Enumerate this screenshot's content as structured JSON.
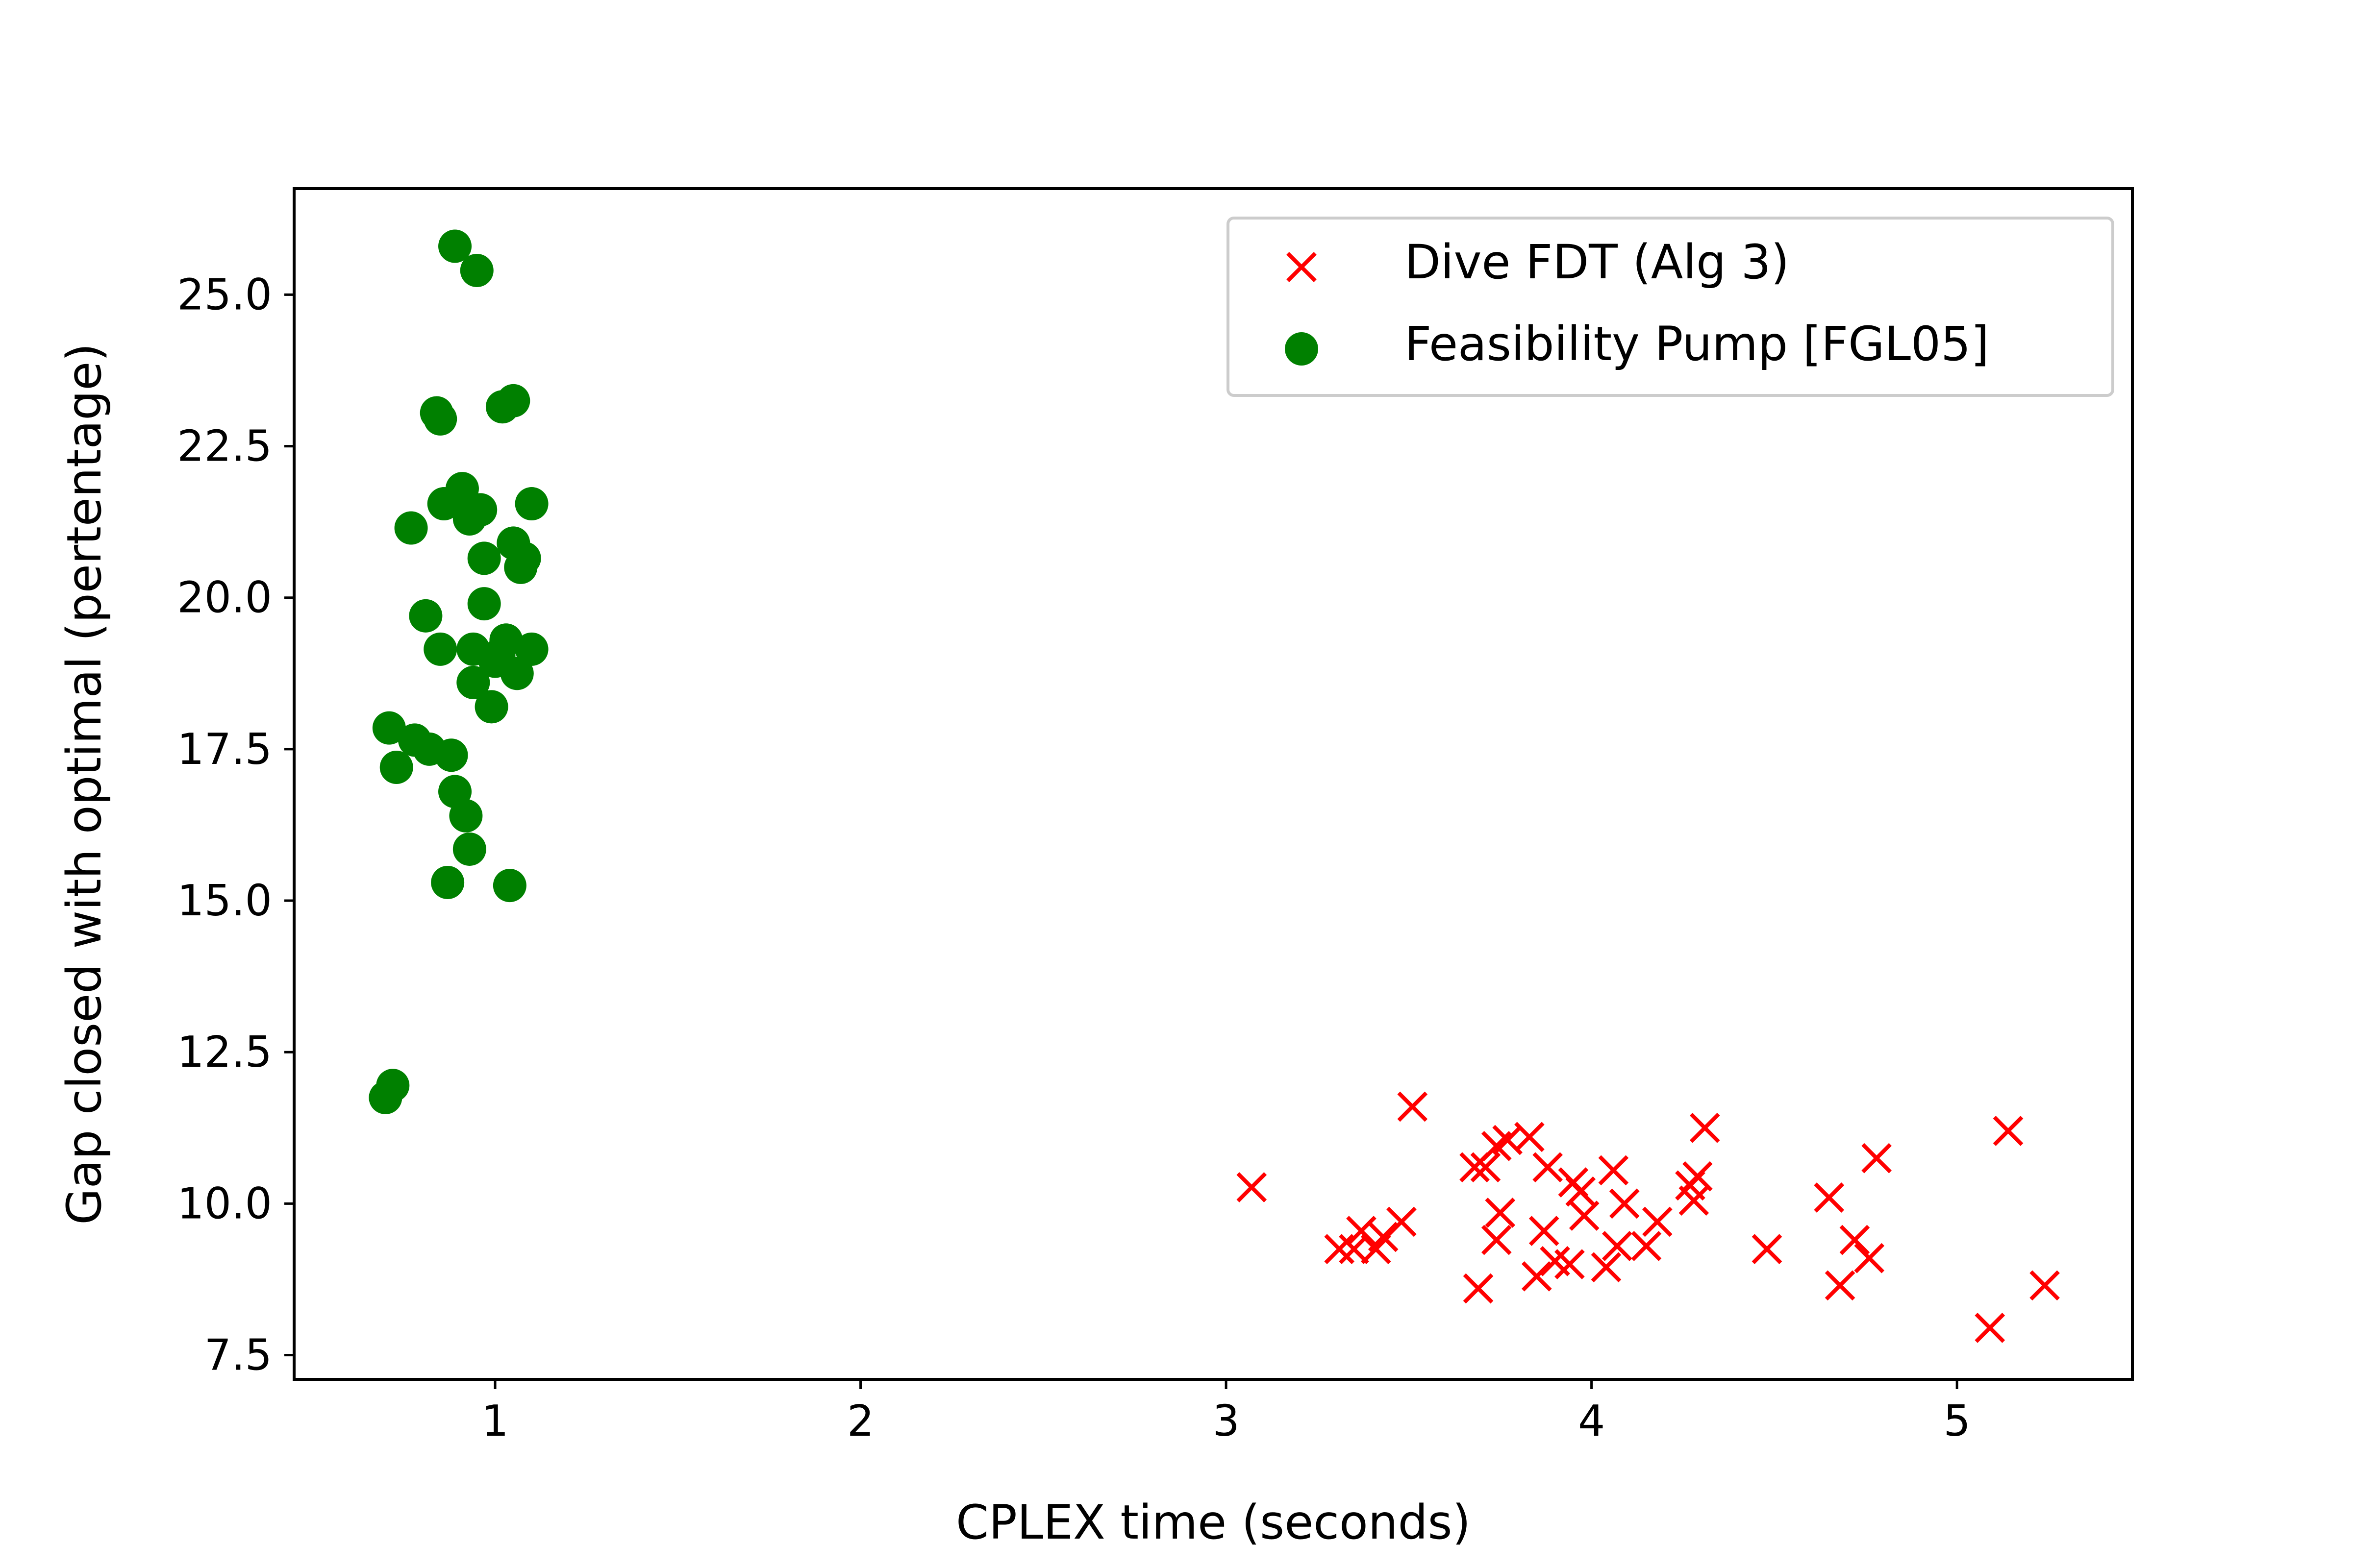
{
  "chart_data": {
    "type": "scatter",
    "title": "",
    "xlabel": "CPLEX time (seconds)",
    "ylabel": "Gap closed with optimal (pertentage)",
    "xlim": [
      0.45,
      5.48
    ],
    "ylim": [
      7.1,
      26.75
    ],
    "x_ticks": [
      1,
      2,
      3,
      4,
      5
    ],
    "x_tick_labels": [
      "1",
      "2",
      "3",
      "4",
      "5"
    ],
    "y_ticks": [
      7.5,
      10.0,
      12.5,
      15.0,
      17.5,
      20.0,
      22.5,
      25.0
    ],
    "y_tick_labels": [
      "7.5",
      "10.0",
      "12.5",
      "15.0",
      "17.5",
      "20.0",
      "22.5",
      "25.0"
    ],
    "grid": false,
    "legend_position": "top-right",
    "series": [
      {
        "name": "Dive FDT (Alg 3)",
        "marker": "x",
        "color": "#ff0000",
        "points": [
          [
            3.07,
            10.27
          ],
          [
            3.31,
            9.25
          ],
          [
            3.35,
            9.25
          ],
          [
            3.37,
            9.55
          ],
          [
            3.41,
            9.25
          ],
          [
            3.43,
            9.45
          ],
          [
            3.48,
            9.7
          ],
          [
            3.51,
            11.6
          ],
          [
            3.68,
            10.6
          ],
          [
            3.69,
            8.6
          ],
          [
            3.71,
            10.6
          ],
          [
            3.74,
            9.4
          ],
          [
            3.74,
            10.95
          ],
          [
            3.75,
            9.85
          ],
          [
            3.77,
            11.05
          ],
          [
            3.83,
            11.1
          ],
          [
            3.85,
            8.8
          ],
          [
            3.87,
            9.55
          ],
          [
            3.88,
            10.6
          ],
          [
            3.9,
            9.05
          ],
          [
            3.94,
            9.0
          ],
          [
            3.95,
            10.35
          ],
          [
            3.97,
            10.2
          ],
          [
            3.98,
            9.8
          ],
          [
            4.04,
            8.95
          ],
          [
            4.06,
            10.55
          ],
          [
            4.07,
            9.3
          ],
          [
            4.09,
            10.0
          ],
          [
            4.15,
            9.3
          ],
          [
            4.18,
            9.7
          ],
          [
            4.27,
            10.3
          ],
          [
            4.28,
            10.05
          ],
          [
            4.29,
            10.45
          ],
          [
            4.31,
            11.25
          ],
          [
            4.48,
            9.25
          ],
          [
            4.65,
            10.1
          ],
          [
            4.68,
            8.65
          ],
          [
            4.72,
            9.4
          ],
          [
            4.76,
            9.1
          ],
          [
            4.78,
            10.75
          ],
          [
            5.09,
            7.95
          ],
          [
            5.14,
            11.2
          ],
          [
            5.24,
            8.65
          ]
        ]
      },
      {
        "name": "Feasibility Pump [FGL05]",
        "marker": "o",
        "color": "#008000",
        "points": [
          [
            0.7,
            11.75
          ],
          [
            0.72,
            11.95
          ],
          [
            0.71,
            17.85
          ],
          [
            0.73,
            17.2
          ],
          [
            0.77,
            21.15
          ],
          [
            0.78,
            17.65
          ],
          [
            0.81,
            19.7
          ],
          [
            0.82,
            17.5
          ],
          [
            0.84,
            23.05
          ],
          [
            0.85,
            22.95
          ],
          [
            0.85,
            19.15
          ],
          [
            0.86,
            21.55
          ],
          [
            0.87,
            15.3
          ],
          [
            0.88,
            17.4
          ],
          [
            0.89,
            16.8
          ],
          [
            0.89,
            25.8
          ],
          [
            0.91,
            21.8
          ],
          [
            0.92,
            16.4
          ],
          [
            0.93,
            15.85
          ],
          [
            0.93,
            21.3
          ],
          [
            0.94,
            18.6
          ],
          [
            0.94,
            19.15
          ],
          [
            0.95,
            25.4
          ],
          [
            0.96,
            21.45
          ],
          [
            0.97,
            20.65
          ],
          [
            0.97,
            19.9
          ],
          [
            0.99,
            18.2
          ],
          [
            1.0,
            18.95
          ],
          [
            1.01,
            19.05
          ],
          [
            1.02,
            23.15
          ],
          [
            1.03,
            19.3
          ],
          [
            1.04,
            15.25
          ],
          [
            1.05,
            23.25
          ],
          [
            1.05,
            20.9
          ],
          [
            1.06,
            18.75
          ],
          [
            1.07,
            20.5
          ],
          [
            1.08,
            20.65
          ],
          [
            1.1,
            21.55
          ],
          [
            1.1,
            19.15
          ]
        ]
      }
    ]
  }
}
